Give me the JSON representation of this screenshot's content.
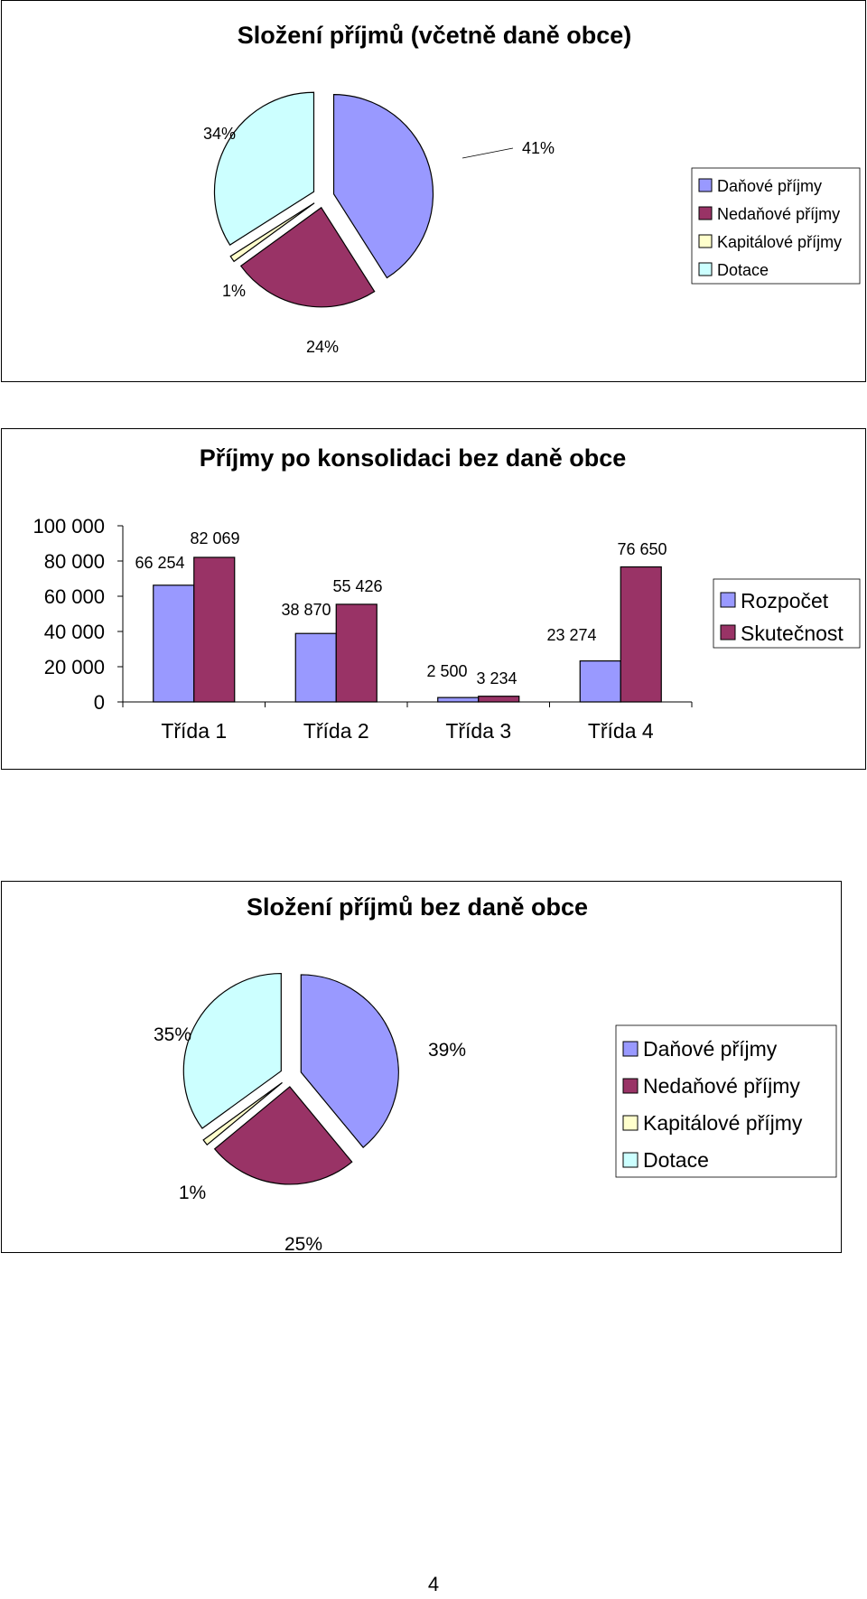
{
  "charts_meta": {
    "colors": {
      "danove": "#9999ff",
      "nedanove": "#993366",
      "kapitalove": "#ffffcc",
      "dotace": "#ccffff",
      "rozpocet": "#9999ff",
      "skutecnost": "#993366"
    }
  },
  "chart_data": [
    {
      "type": "pie",
      "title": "Složení příjmů (včetně daně obce)",
      "labels": [
        "Daňové příjmy",
        "Nedaňové příjmy",
        "Kapitálové příjmy",
        "Dotace"
      ],
      "values": [
        41,
        24,
        1,
        34
      ],
      "value_labels": [
        "41%",
        "24%",
        "1%",
        "34%"
      ],
      "exploded": true,
      "legend": "right"
    },
    {
      "type": "bar",
      "title": "Příjmy  po konsolidaci bez daně obce",
      "categories": [
        "Třída 1",
        "Třída 2",
        "Třída 3",
        "Třída 4"
      ],
      "series": [
        {
          "name": "Rozpočet",
          "values": [
            66254,
            38870,
            2500,
            23274
          ],
          "labels": [
            "66 254",
            "38 870",
            "2 500",
            "23 274"
          ]
        },
        {
          "name": "Skutečnost",
          "values": [
            82069,
            55426,
            3234,
            76650
          ],
          "labels": [
            "82 069",
            "55 426",
            "3 234",
            "76 650"
          ]
        }
      ],
      "ylim": [
        0,
        100000
      ],
      "yticks": [
        "0",
        "20 000",
        "40 000",
        "60 000",
        "80 000",
        "100 000"
      ],
      "legend": "right"
    },
    {
      "type": "pie",
      "title": "Složení příjmů bez daně  obce",
      "labels": [
        "Daňové příjmy",
        "Nedaňové příjmy",
        "Kapitálové příjmy",
        "Dotace"
      ],
      "values": [
        39,
        25,
        1,
        35
      ],
      "value_labels": [
        "39%",
        "25%",
        "1%",
        "35%"
      ],
      "exploded": true,
      "legend": "right"
    }
  ],
  "page_number": "4"
}
